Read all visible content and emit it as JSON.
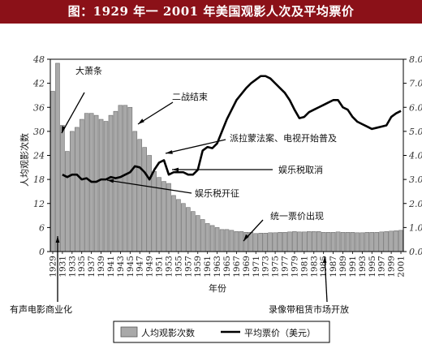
{
  "title": "图：1929 年一 2001 年美国观影人次及平均票价",
  "chart_data": {
    "type": "bar+line",
    "title": "图：1929 年一 2001 年美国观影人次及平均票价",
    "xlabel": "年份",
    "ylabel_left": "人均观影次数",
    "ylabel_right": "",
    "ylim_left": [
      0,
      48
    ],
    "ylim_right": [
      0,
      8
    ],
    "yticks_left": [
      "0",
      "6",
      "12",
      "18",
      "24",
      "30",
      "36",
      "42",
      "48"
    ],
    "yticks_right": [
      "0.0",
      "1.0",
      "2.0",
      "3.0",
      "4.0",
      "5.0",
      "6.0",
      "7.0",
      "8.0"
    ],
    "xtick_labels": [
      "1929",
      "1931",
      "1933",
      "1935",
      "1937",
      "1939",
      "1941",
      "1943",
      "1945",
      "1947",
      "1949",
      "1951",
      "1953",
      "1955",
      "1957",
      "1959",
      "1961",
      "1963",
      "1965",
      "1967",
      "1969",
      "1971",
      "1973",
      "1975",
      "1977",
      "1979",
      "1981",
      "1983",
      "1985",
      "1987",
      "1989",
      "1991",
      "1993",
      "1995",
      "1997",
      "1999",
      "2001"
    ],
    "years": [
      1929,
      1930,
      1931,
      1932,
      1933,
      1934,
      1935,
      1936,
      1937,
      1938,
      1939,
      1940,
      1941,
      1942,
      1943,
      1944,
      1945,
      1946,
      1947,
      1948,
      1949,
      1950,
      1951,
      1952,
      1953,
      1954,
      1955,
      1956,
      1957,
      1958,
      1959,
      1960,
      1961,
      1962,
      1963,
      1964,
      1965,
      1966,
      1967,
      1968,
      1969,
      1970,
      1971,
      1972,
      1973,
      1974,
      1975,
      1976,
      1977,
      1978,
      1979,
      1980,
      1981,
      1982,
      1983,
      1984,
      1985,
      1986,
      1987,
      1988,
      1989,
      1990,
      1991,
      1992,
      1993,
      1994,
      1995,
      1996,
      1997,
      1998,
      1999,
      2000,
      2001
    ],
    "series": [
      {
        "name": "人均观影次数",
        "type": "bar",
        "axis": "left",
        "color": "#a9a9a9",
        "values": [
          40,
          47,
          31.5,
          25,
          30,
          31,
          33,
          34.5,
          34.5,
          34,
          33,
          32.5,
          34,
          35,
          36.5,
          36.5,
          36,
          30,
          28,
          26,
          24,
          20,
          18.5,
          17.5,
          17,
          14,
          13,
          12,
          11,
          10,
          9,
          8,
          7,
          6.5,
          6,
          5.5,
          5.5,
          5.3,
          5,
          5,
          4.8,
          4.8,
          4.5,
          4.6,
          4.6,
          4.7,
          4.7,
          4.8,
          4.8,
          4.9,
          5,
          4.9,
          4.9,
          5,
          5,
          5,
          4.8,
          4.8,
          4.8,
          4.9,
          4.8,
          4.8,
          4.8,
          4.7,
          4.7,
          4.8,
          4.8,
          4.8,
          4.9,
          5,
          5.1,
          5.2,
          5.3
        ]
      },
      {
        "name": "平均票价（美元）",
        "type": "line",
        "axis": "right",
        "color": "#000000",
        "values": [
          null,
          null,
          3.2,
          3.1,
          3.2,
          3.2,
          3.0,
          3.05,
          2.9,
          2.9,
          3.0,
          3.0,
          3.1,
          3.05,
          3.1,
          3.2,
          3.3,
          3.55,
          3.5,
          3.3,
          3.0,
          3.4,
          3.7,
          3.8,
          3.2,
          3.3,
          3.3,
          3.3,
          3.2,
          3.2,
          3.4,
          4.2,
          4.35,
          4.3,
          4.5,
          5.0,
          5.5,
          5.9,
          6.3,
          6.55,
          6.8,
          7.0,
          7.15,
          7.3,
          7.3,
          7.2,
          7.0,
          6.8,
          6.6,
          6.3,
          5.9,
          5.55,
          5.6,
          5.8,
          5.9,
          6.0,
          6.1,
          6.2,
          6.3,
          6.3,
          6.0,
          5.9,
          5.6,
          5.4,
          5.3,
          5.2,
          5.1,
          5.15,
          5.2,
          5.25,
          5.6,
          5.75,
          5.85
        ]
      }
    ],
    "annotations": [
      "大萧条",
      "二战结束",
      "派拉蒙法案、电视开始普及",
      "娱乐税取消",
      "娱乐税开征",
      "统一票价出现",
      "有声电影商业化",
      "录像带租赁市场开放"
    ],
    "legend": {
      "placement": "bottom",
      "items": [
        "人均观影次数",
        "平均票价（美元）"
      ]
    },
    "grid": false
  }
}
